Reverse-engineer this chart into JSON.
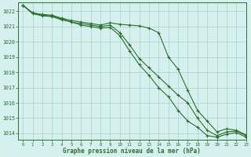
{
  "title": "Graphe pression niveau de la mer (hPa)",
  "bg_color": "#d6f0f0",
  "grid_color": "#b0d8d0",
  "line_color": "#2d6e2d",
  "xlim": [
    -0.5,
    23
  ],
  "ylim": [
    1013.6,
    1022.6
  ],
  "yticks": [
    1014,
    1015,
    1016,
    1017,
    1018,
    1019,
    1020,
    1021,
    1022
  ],
  "xticks": [
    0,
    1,
    2,
    3,
    4,
    5,
    6,
    7,
    8,
    9,
    10,
    11,
    12,
    13,
    14,
    15,
    16,
    17,
    18,
    19,
    20,
    21,
    22,
    23
  ],
  "series": [
    [
      1022.4,
      1021.9,
      1021.8,
      1021.75,
      1021.55,
      1021.4,
      1021.3,
      1021.2,
      1021.1,
      1021.25,
      1021.15,
      1021.1,
      1021.05,
      1020.9,
      1020.6,
      1019.0,
      1018.2,
      1016.8,
      1015.5,
      1014.8,
      1014.1,
      1014.3,
      1014.2,
      1013.9
    ],
    [
      1022.4,
      1021.9,
      1021.75,
      1021.7,
      1021.5,
      1021.3,
      1021.2,
      1021.1,
      1021.0,
      1021.1,
      1020.6,
      1019.8,
      1018.9,
      1018.3,
      1017.7,
      1017.1,
      1016.5,
      1016.0,
      1015.0,
      1014.2,
      1013.85,
      1014.1,
      1014.15,
      1013.85
    ],
    [
      1022.4,
      1021.85,
      1021.7,
      1021.65,
      1021.45,
      1021.3,
      1021.1,
      1021.0,
      1020.9,
      1020.95,
      1020.4,
      1019.4,
      1018.5,
      1017.8,
      1017.0,
      1016.4,
      1015.5,
      1014.8,
      1014.4,
      1013.85,
      1013.75,
      1013.95,
      1014.05,
      1013.75
    ]
  ]
}
